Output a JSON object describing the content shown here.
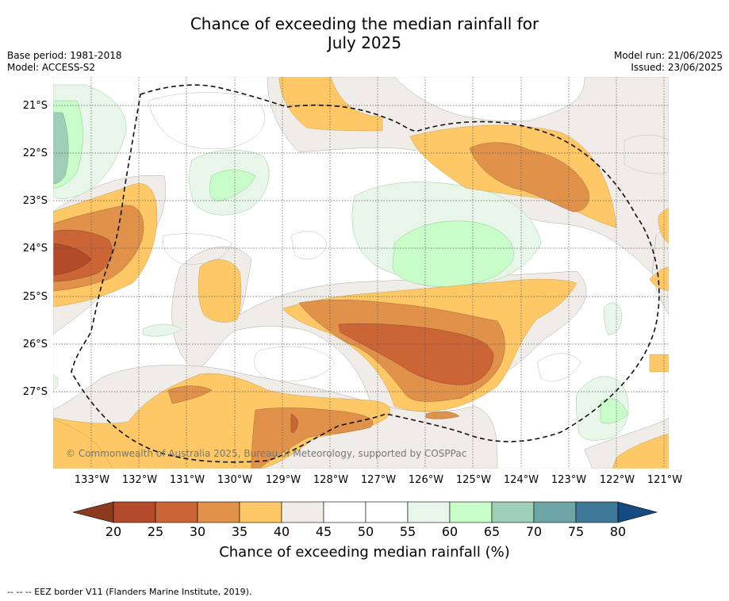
{
  "title_line1": "Chance of exceeding the median rainfall for",
  "title_line2": "July 2025",
  "base_period": "Base period: 1981-2018",
  "model": "Model: ACCESS-S2",
  "model_run": "Model run: 21/06/2025",
  "issued": "Issued: 23/06/2025",
  "copyright": "© Commonwealth of Australia 2025, Bureau of Meteorology, supported by COSPPac",
  "lat_labels": [
    "21°S",
    "22°S",
    "23°S",
    "24°S",
    "25°S",
    "26°S",
    "27°S"
  ],
  "lon_labels": [
    "133°W",
    "132°W",
    "131°W",
    "130°W",
    "129°W",
    "128°W",
    "127°W",
    "126°W",
    "125°W",
    "124°W",
    "123°W",
    "122°W",
    "121°W"
  ],
  "colorbar": {
    "ticks": [
      "20",
      "25",
      "30",
      "35",
      "40",
      "45",
      "50",
      "55",
      "60",
      "65",
      "70",
      "75",
      "80"
    ],
    "colors": [
      "#8c3b1f",
      "#b34a2a",
      "#cc6535",
      "#e0914a",
      "#fdc865",
      "#f0ece7",
      "#ffffff",
      "#ffffff",
      "#e8f5e9",
      "#c8fcc8",
      "#9ecfb6",
      "#6ea6a8",
      "#3f7898",
      "#154a80"
    ],
    "label": "Chance of exceeding median rainfall (%)"
  },
  "footer": "--  --  -- EEZ border V11 (Flanders Marine Institute, 2019)."
}
